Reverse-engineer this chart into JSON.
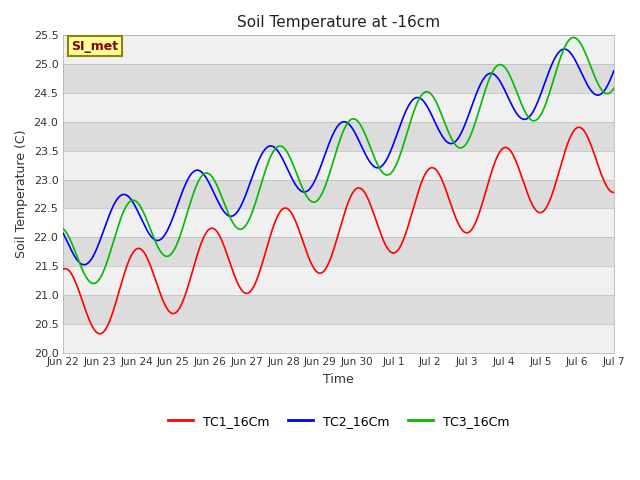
{
  "title": "Soil Temperature at -16cm",
  "xlabel": "Time",
  "ylabel": "Soil Temperature (C)",
  "ylim": [
    20.0,
    25.5
  ],
  "bg_color": "#FFFFFF",
  "plot_bg_color": "#DCDCDC",
  "stripe_color": "#F0F0F0",
  "annotation_text": "SI_met",
  "annotation_bg": "#FFFF99",
  "annotation_border": "#888800",
  "annotation_text_color": "#880000",
  "legend_labels": [
    "TC1_16Cm",
    "TC2_16Cm",
    "TC3_16Cm"
  ],
  "line_colors": [
    "#FF0000",
    "#0000FF",
    "#00BB00"
  ],
  "line_width": 1.2,
  "tick_labels": [
    "Jun 22",
    "Jun 23",
    "Jun 24",
    "Jun 25",
    "Jun 26",
    "Jun 27",
    "Jun 28",
    "Jun 29",
    "Jun 30",
    "Jul 1",
    "Jul 2",
    "Jul 3",
    "Jul 4",
    "Jul 5",
    "Jul 6",
    "Jul 7"
  ],
  "num_points": 1500,
  "total_days": 15
}
